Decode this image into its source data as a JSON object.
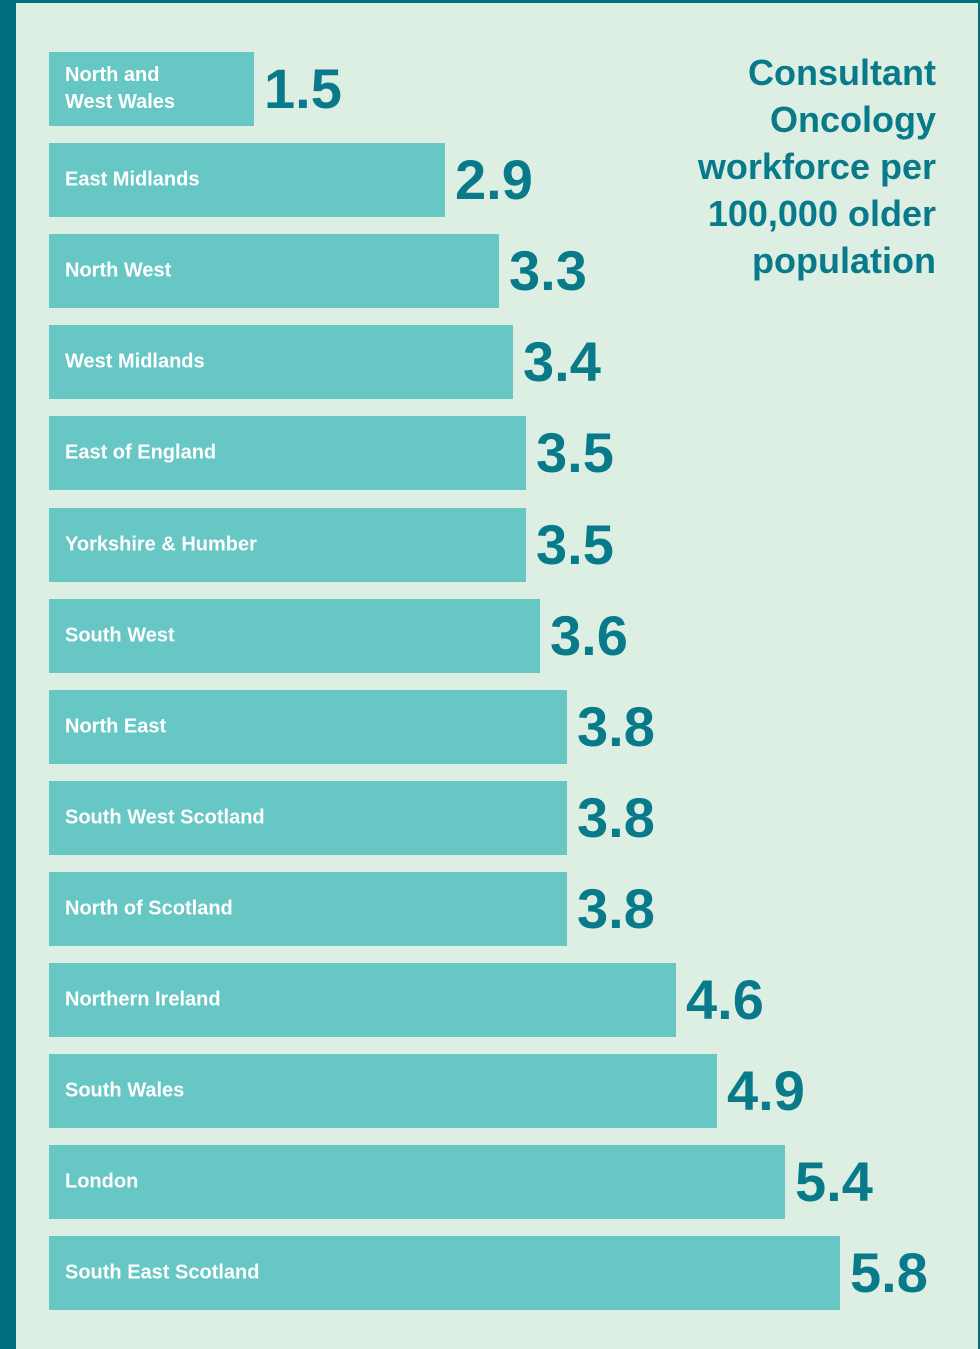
{
  "chart_data": {
    "type": "bar",
    "orientation": "horizontal",
    "title": "Consultant Oncology workforce per 100,000 older population",
    "categories": [
      "North and\nWest Wales",
      "East Midlands",
      "North West",
      "West Midlands",
      "East of England",
      "Yorkshire & Humber",
      "South West",
      "North East",
      "South West Scotland",
      "North of Scotland",
      "Northern Ireland",
      "South Wales",
      "London",
      "South East Scotland"
    ],
    "value_labels": [
      "1.5",
      "2.9",
      "3.3",
      "3.4",
      "3.5",
      "3.5",
      "3.6",
      "3.8",
      "3.8",
      "3.8",
      "4.6",
      "4.9",
      "5.4",
      "5.8"
    ],
    "values": [
      1.5,
      2.9,
      3.3,
      3.4,
      3.5,
      3.5,
      3.6,
      3.8,
      3.8,
      3.8,
      4.6,
      4.9,
      5.4,
      5.8
    ],
    "xlim": [
      0,
      5.8
    ],
    "bar_color": "#67c7c4",
    "value_color": "#087a8a",
    "background_color": "#ddefe3",
    "frame_color": "#00707f",
    "grid": false
  }
}
